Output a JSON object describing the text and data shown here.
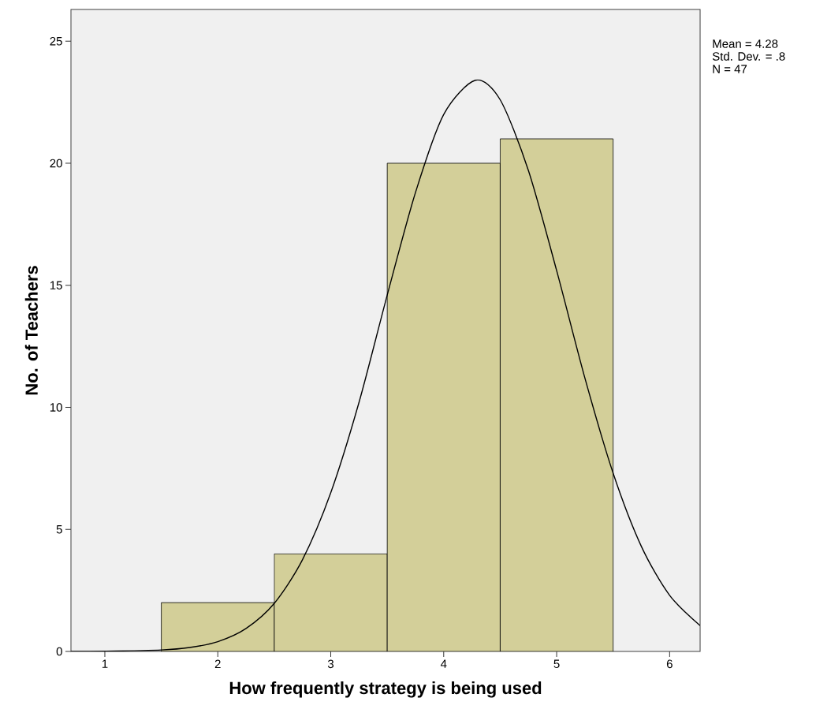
{
  "chart_data": {
    "type": "histogram",
    "xlabel": "How frequently strategy is being used",
    "ylabel": "No. of Teachers",
    "bins": [
      1.5,
      2.5,
      3.5,
      4.5,
      5.5
    ],
    "values": [
      2,
      4,
      20,
      21
    ],
    "color": "#d3cf99",
    "xlim": [
      0.7,
      6.27
    ],
    "ylim": [
      0,
      26.3
    ],
    "xticks": [
      1,
      2,
      3,
      4,
      5,
      6
    ],
    "yticks": [
      0,
      5,
      10,
      15,
      20,
      25
    ],
    "series": [
      {
        "type": "line",
        "color": "#000000",
        "x": [
          0.7,
          1.0,
          1.5,
          1.75,
          2.0,
          2.25,
          2.5,
          2.75,
          3.0,
          3.25,
          3.5,
          3.75,
          4.0,
          4.28,
          4.5,
          4.75,
          5.0,
          5.25,
          5.5,
          5.75,
          6.0,
          6.27
        ],
        "values": [
          0,
          0.01,
          0.06,
          0.16,
          0.4,
          0.94,
          1.97,
          3.76,
          6.5,
          10.2,
          14.6,
          18.8,
          22.0,
          23.4,
          22.6,
          19.7,
          15.6,
          11.2,
          7.3,
          4.3,
          2.3,
          1.06
        ]
      }
    ],
    "annotations": [
      "Mean = 4.28",
      "Std. Dev. = .8",
      "N = 47"
    ]
  }
}
